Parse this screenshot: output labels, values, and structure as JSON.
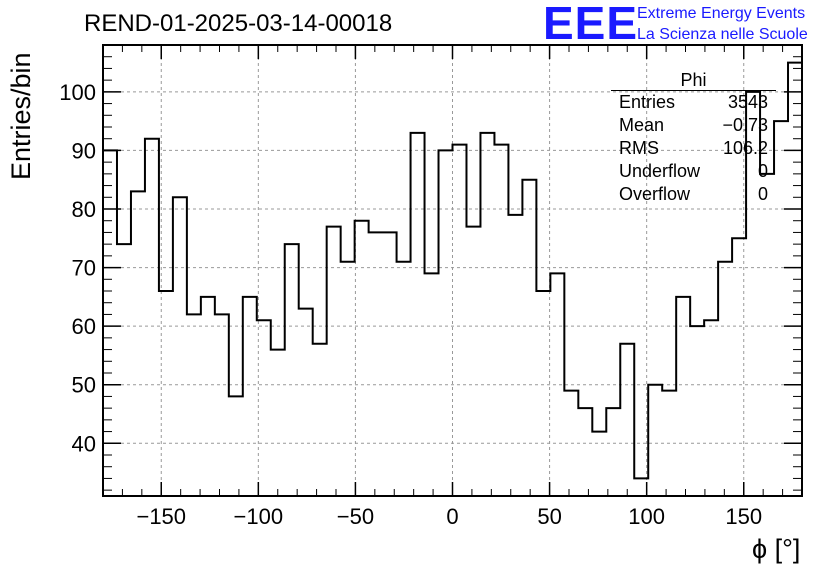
{
  "header": {
    "run_title": "REND-01-2025-03-14-00018",
    "logo_text": "EEE",
    "logo_line1": "Extreme Energy Events",
    "logo_line2": "La Scienza nelle Scuole",
    "logo_color": "#1a1aff"
  },
  "stats_box": {
    "title": "Phi",
    "rows": [
      {
        "label": "Entries",
        "value": "3543"
      },
      {
        "label": "Mean",
        "value": "−0.73"
      },
      {
        "label": "RMS",
        "value": "106.2"
      },
      {
        "label": "Underflow",
        "value": "0"
      },
      {
        "label": "Overflow",
        "value": "0"
      }
    ]
  },
  "chart_data": {
    "type": "bar",
    "style": "step-histogram",
    "title": "REND-01-2025-03-14-00018",
    "xlabel": "ϕ [°]",
    "ylabel": "Entries/bin",
    "xlim": [
      -180,
      180
    ],
    "ylim": [
      31,
      108
    ],
    "bin_width": 7.2,
    "bin_start": -180,
    "x_ticks": [
      -150,
      -100,
      -50,
      0,
      50,
      100,
      150
    ],
    "x_tick_labels": [
      "−150",
      "−100",
      "−50",
      "0",
      "50",
      "100",
      "150"
    ],
    "y_ticks": [
      40,
      50,
      60,
      70,
      80,
      90,
      100
    ],
    "y_tick_labels": [
      "40",
      "50",
      "60",
      "70",
      "80",
      "90",
      "100"
    ],
    "grid": true,
    "line_color": "#000000",
    "values": [
      90,
      74,
      83,
      92,
      66,
      82,
      62,
      65,
      62,
      48,
      65,
      61,
      56,
      74,
      63,
      57,
      77,
      71,
      78,
      76,
      76,
      71,
      93,
      69,
      90,
      91,
      77,
      93,
      91,
      79,
      85,
      66,
      69,
      49,
      46,
      42,
      46,
      57,
      34,
      50,
      49,
      65,
      60,
      61,
      71,
      75,
      100,
      86,
      95,
      105
    ]
  }
}
